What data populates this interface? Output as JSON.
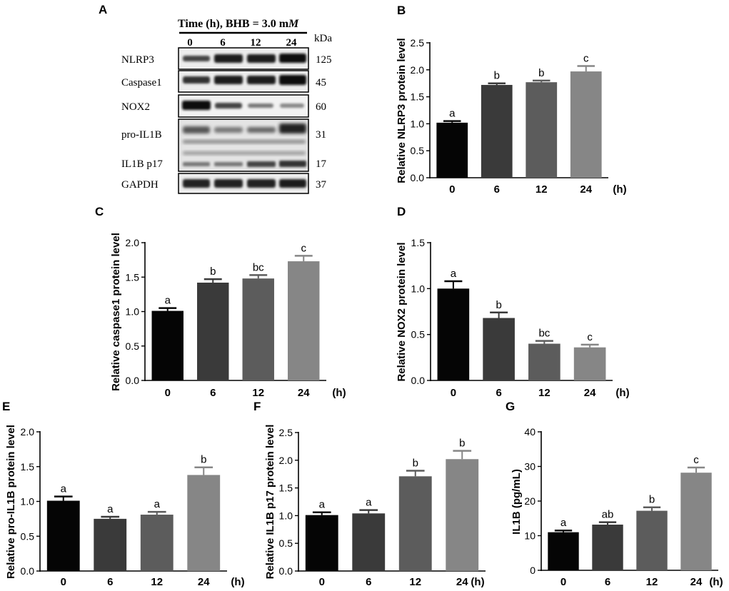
{
  "western_blot": {
    "panel_label": "A",
    "header": "Time (h), BHB = 3.0 m",
    "header_unit_italic": "M",
    "time_labels": [
      "0",
      "6",
      "12",
      "24"
    ],
    "kda_header": "kDa",
    "bands": [
      {
        "name": "NLRP3",
        "kda": "125"
      },
      {
        "name": "Caspase1",
        "kda": "45"
      },
      {
        "name": "NOX2",
        "kda": "60"
      },
      {
        "name": "pro-IL1B",
        "kda": "31"
      },
      {
        "name": "IL1B p17",
        "kda": "17"
      },
      {
        "name": "GAPDH",
        "kda": "37"
      }
    ]
  },
  "chart_data": [
    {
      "panel": "B",
      "type": "bar",
      "categories": [
        "0",
        "6",
        "12",
        "24"
      ],
      "x_unit": "(h)",
      "values": [
        1.02,
        1.72,
        1.77,
        1.97
      ],
      "errors": [
        0.03,
        0.03,
        0.03,
        0.1
      ],
      "letters": [
        "a",
        "b",
        "b",
        "c"
      ],
      "ylabel": "Relative NLRP3 protein level",
      "ylim": [
        0,
        2.5
      ],
      "yticks": [
        "0.0",
        "0.5",
        "1.0",
        "1.5",
        "2.0",
        "2.5"
      ],
      "colors": [
        "#050505",
        "#3a3a3a",
        "#5c5c5c",
        "#868686"
      ]
    },
    {
      "panel": "C",
      "type": "bar",
      "categories": [
        "0",
        "6",
        "12",
        "24"
      ],
      "x_unit": "(h)",
      "values": [
        1.01,
        1.42,
        1.48,
        1.73
      ],
      "errors": [
        0.04,
        0.05,
        0.05,
        0.08
      ],
      "letters": [
        "a",
        "b",
        "bc",
        "c"
      ],
      "ylabel": "Relative caspase1 protein level",
      "ylim": [
        0,
        2.0
      ],
      "yticks": [
        "0.0",
        "0.5",
        "1.0",
        "1.5",
        "2.0"
      ],
      "colors": [
        "#050505",
        "#3a3a3a",
        "#5c5c5c",
        "#868686"
      ]
    },
    {
      "panel": "D",
      "type": "bar",
      "categories": [
        "0",
        "6",
        "12",
        "24"
      ],
      "x_unit": "(h)",
      "values": [
        1.0,
        0.68,
        0.4,
        0.36
      ],
      "errors": [
        0.08,
        0.06,
        0.03,
        0.03
      ],
      "letters": [
        "a",
        "b",
        "bc",
        "c"
      ],
      "ylabel": "Relative NOX2 protein level",
      "ylim": [
        0,
        1.5
      ],
      "yticks": [
        "0.0",
        "0.5",
        "1.0",
        "1.5"
      ],
      "colors": [
        "#050505",
        "#3a3a3a",
        "#5c5c5c",
        "#868686"
      ]
    },
    {
      "panel": "E",
      "type": "bar",
      "categories": [
        "0",
        "6",
        "12",
        "24"
      ],
      "x_unit": "(h)",
      "values": [
        1.01,
        0.75,
        0.81,
        1.38
      ],
      "errors": [
        0.06,
        0.03,
        0.04,
        0.11
      ],
      "letters": [
        "a",
        "a",
        "a",
        "b"
      ],
      "ylabel": "Relative pro-IL1B protein level",
      "ylim": [
        0,
        2.0
      ],
      "yticks": [
        "0.0",
        "0.5",
        "1.0",
        "1.5",
        "2.0"
      ],
      "colors": [
        "#050505",
        "#3a3a3a",
        "#5c5c5c",
        "#868686"
      ]
    },
    {
      "panel": "F",
      "type": "bar",
      "categories": [
        "0",
        "6",
        "12",
        "24"
      ],
      "x_unit": "(h)",
      "values": [
        1.01,
        1.04,
        1.71,
        2.02
      ],
      "errors": [
        0.05,
        0.06,
        0.1,
        0.15
      ],
      "letters": [
        "a",
        "a",
        "b",
        "b"
      ],
      "ylabel": "Relative IL1B p17 protein level",
      "ylim": [
        0,
        2.5
      ],
      "yticks": [
        "0.0",
        "0.5",
        "1.0",
        "1.5",
        "2.0",
        "2.5"
      ],
      "colors": [
        "#050505",
        "#3a3a3a",
        "#5c5c5c",
        "#868686"
      ]
    },
    {
      "panel": "G",
      "type": "bar",
      "categories": [
        "0",
        "6",
        "12",
        "24"
      ],
      "x_unit": "(h)",
      "values": [
        11.0,
        13.2,
        17.2,
        28.2
      ],
      "errors": [
        0.5,
        0.7,
        1.0,
        1.5
      ],
      "letters": [
        "a",
        "ab",
        "b",
        "c"
      ],
      "ylabel": "IL1B (pg/mL)",
      "ylim": [
        0,
        40
      ],
      "yticks": [
        "0",
        "10",
        "20",
        "30",
        "40"
      ],
      "colors": [
        "#050505",
        "#3a3a3a",
        "#5c5c5c",
        "#868686"
      ]
    }
  ]
}
